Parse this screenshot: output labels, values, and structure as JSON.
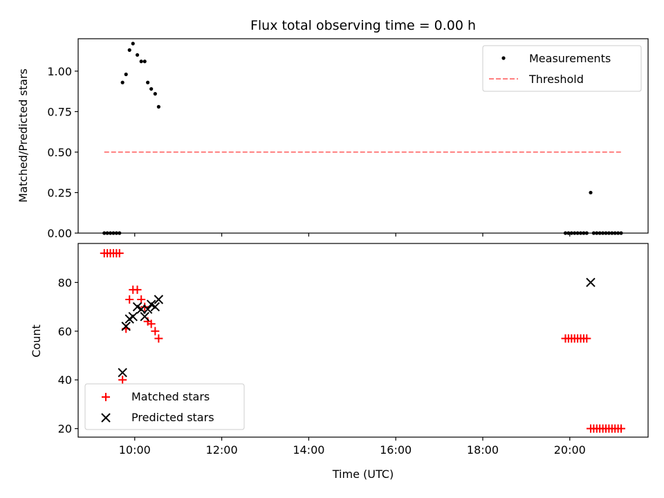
{
  "chart_data": [
    {
      "type": "scatter",
      "title": "Flux total observing time = 0.00 h",
      "xlabel": "",
      "ylabel": "Matched/Predicted stars",
      "xlim": [
        8.7,
        21.8
      ],
      "ylim": [
        0.0,
        1.2
      ],
      "xticks": [
        10,
        12,
        14,
        16,
        18,
        20
      ],
      "xticklabels_visible": false,
      "yticks": [
        0.0,
        0.25,
        0.5,
        0.75,
        1.0
      ],
      "yticklabels": [
        "0.00",
        "0.25",
        "0.50",
        "0.75",
        "1.00"
      ],
      "legend": {
        "position": "top-right",
        "entries": [
          "Measurements",
          "Threshold"
        ]
      },
      "series": [
        {
          "name": "Measurements",
          "kind": "dot",
          "color": "#000000",
          "x": [
            9.3,
            9.37,
            9.44,
            9.51,
            9.58,
            9.65,
            9.72,
            9.8,
            9.88,
            9.96,
            10.06,
            10.15,
            10.23,
            10.3,
            10.38,
            10.47,
            10.55,
            19.9,
            19.97,
            20.04,
            20.11,
            20.18,
            20.25,
            20.32,
            20.39,
            20.48,
            20.55,
            20.62,
            20.69,
            20.76,
            20.83,
            20.9,
            20.97,
            21.04,
            21.11,
            21.18
          ],
          "y": [
            0.0,
            0.0,
            0.0,
            0.0,
            0.0,
            0.0,
            0.93,
            0.98,
            1.13,
            1.17,
            1.1,
            1.06,
            1.06,
            0.93,
            0.89,
            0.86,
            0.78,
            0.0,
            0.0,
            0.0,
            0.0,
            0.0,
            0.0,
            0.0,
            0.0,
            0.25,
            0.0,
            0.0,
            0.0,
            0.0,
            0.0,
            0.0,
            0.0,
            0.0,
            0.0,
            0.0
          ]
        },
        {
          "name": "Threshold",
          "kind": "dashed-line",
          "color": "#ff7f7f",
          "x": [
            9.3,
            21.2
          ],
          "y": [
            0.5,
            0.5
          ]
        }
      ]
    },
    {
      "type": "scatter",
      "title": "",
      "xlabel": "Time (UTC)",
      "ylabel": "Count",
      "xlim": [
        8.7,
        21.8
      ],
      "ylim": [
        16.5,
        96
      ],
      "xticks": [
        10,
        12,
        14,
        16,
        18,
        20
      ],
      "xticklabels": [
        "10:00",
        "12:00",
        "14:00",
        "16:00",
        "18:00",
        "20:00"
      ],
      "yticks": [
        20,
        40,
        60,
        80
      ],
      "yticklabels": [
        "20",
        "40",
        "60",
        "80"
      ],
      "legend": {
        "position": "bottom-left",
        "entries": [
          "Matched stars",
          "Predicted stars"
        ]
      },
      "series": [
        {
          "name": "Matched stars",
          "kind": "plus",
          "color": "#ff0000",
          "x": [
            9.3,
            9.37,
            9.44,
            9.51,
            9.58,
            9.65,
            9.72,
            9.8,
            9.88,
            9.96,
            10.06,
            10.15,
            10.23,
            10.3,
            10.38,
            10.47,
            10.55,
            19.9,
            19.97,
            20.04,
            20.11,
            20.18,
            20.25,
            20.32,
            20.39,
            20.48,
            20.55,
            20.62,
            20.69,
            20.76,
            20.83,
            20.9,
            20.97,
            21.04,
            21.11,
            21.18
          ],
          "y": [
            92,
            92,
            92,
            92,
            92,
            92,
            40,
            61,
            73,
            77,
            77,
            73,
            70,
            64,
            63,
            60,
            57,
            57,
            57,
            57,
            57,
            57,
            57,
            57,
            57,
            20,
            20,
            20,
            20,
            20,
            20,
            20,
            20,
            20,
            20,
            20
          ]
        },
        {
          "name": "Predicted stars",
          "kind": "x",
          "color": "#000000",
          "x": [
            9.72,
            9.8,
            9.88,
            9.96,
            10.06,
            10.15,
            10.23,
            10.3,
            10.38,
            10.47,
            10.55,
            20.48
          ],
          "y": [
            43,
            62,
            65,
            66,
            70,
            69,
            66,
            69,
            71,
            70,
            73,
            80
          ]
        }
      ]
    }
  ]
}
